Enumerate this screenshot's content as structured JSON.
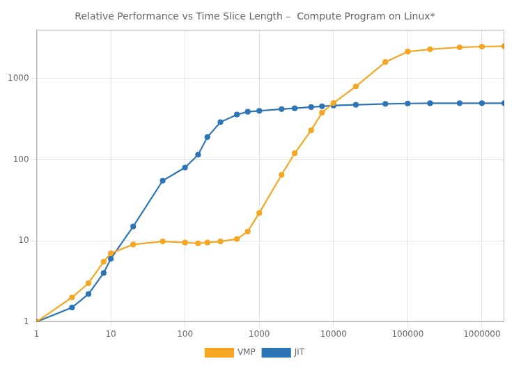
{
  "chart_data": {
    "type": "line",
    "title": "Relative Performance vs Time Slice Length –  Compute Program on Linux*",
    "x": [
      1,
      3,
      5,
      8,
      10,
      20,
      50,
      100,
      150,
      200,
      300,
      500,
      700,
      1000,
      2000,
      3000,
      5000,
      7000,
      10000,
      20000,
      50000,
      100000,
      200000,
      500000,
      1000000,
      2000000
    ],
    "series": [
      {
        "name": "VMP",
        "color": "#F5A623",
        "values": [
          1,
          2.0,
          3.0,
          5.5,
          7.0,
          9.0,
          9.8,
          9.5,
          9.3,
          9.5,
          9.8,
          10.5,
          13,
          22,
          65,
          120,
          230,
          380,
          500,
          800,
          1600,
          2150,
          2300,
          2430,
          2480,
          2510
        ]
      },
      {
        "name": "JIT",
        "color": "#2E75B6",
        "values": [
          1,
          1.5,
          2.2,
          4.0,
          6.0,
          15,
          55,
          80,
          115,
          190,
          290,
          360,
          390,
          400,
          420,
          430,
          445,
          455,
          465,
          475,
          488,
          493,
          496,
          497,
          497,
          497
        ]
      }
    ],
    "xlim": [
      1,
      2000000
    ],
    "ylim": [
      1,
      4000
    ],
    "xticks": [
      1,
      10,
      100,
      1000,
      10000,
      100000,
      1000000
    ],
    "yticks": [
      1,
      10,
      100,
      1000
    ],
    "log": true,
    "grid": true,
    "legend": "bottom",
    "marker": "circle"
  }
}
